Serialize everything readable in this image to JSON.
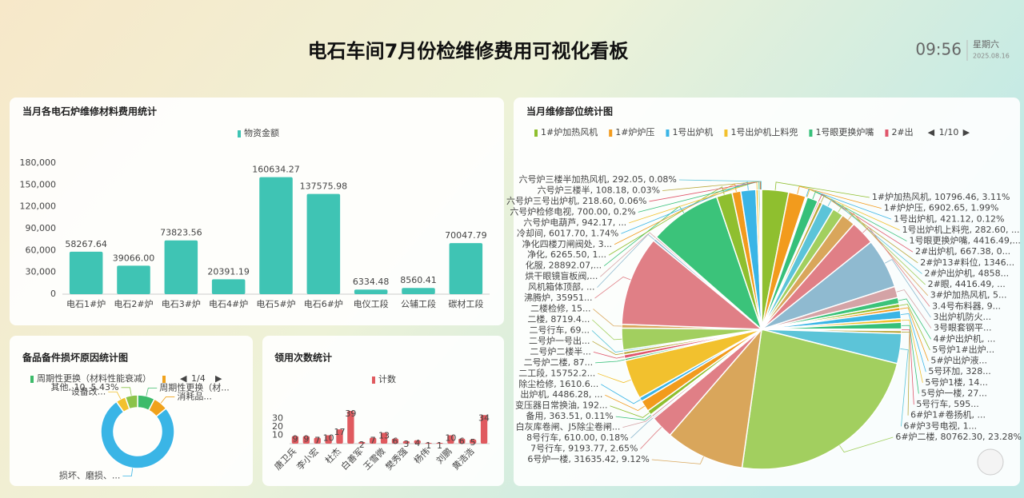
{
  "header": {
    "title": "电石车间7月份检维修费用可视化看板",
    "time": "09:56",
    "weekday": "星期六",
    "date": "2025.08.16"
  },
  "chart_data": [
    {
      "type": "bar",
      "title": "当月各电石炉维修材料费用统计",
      "categories": [
        "电石1#炉",
        "电石2#炉",
        "电石3#炉",
        "电石4#炉",
        "电石5#炉",
        "电石6#炉",
        "电仪工段",
        "公辅工段",
        "碳材工段"
      ],
      "series": [
        {
          "name": "物资金额",
          "color": "#3fc4b4",
          "values": [
            58267.64,
            39066,
            73823.56,
            20391.19,
            160634.27,
            137575.98,
            6334.48,
            8560.41,
            70047.79
          ],
          "value_labels": [
            "58267.64",
            "39066.00",
            "73823.56",
            "20391.19",
            "160634.27",
            "137575.98",
            "6334.48",
            "8560.41",
            "70047.79"
          ]
        }
      ],
      "ylim": [
        0,
        180000
      ],
      "yticks": [
        0,
        {
          "value": 30000,
          "label": "30,000"
        },
        {
          "value": 60000,
          "label": "60,000"
        },
        {
          "value": 90000,
          "label": "90,000"
        },
        {
          "value": 120000,
          "label": "120,000"
        },
        {
          "value": 150000,
          "label": "150,000"
        },
        {
          "value": 180000,
          "label": "180,000"
        }
      ],
      "grid": false
    },
    {
      "type": "pie",
      "title": "当月维修部位统计图",
      "donut": false,
      "legend": [
        "1#炉加热风机",
        "1#炉炉压",
        "1号出炉机",
        "1号出炉机上料兜",
        "1号眼更换炉嘴",
        "2#出"
      ],
      "legend_page": "1/10",
      "colors": [
        "#8fbf2f",
        "#f29b1d",
        "#3ab5e6",
        "#f2c12e",
        "#36c07a",
        "#e0566b",
        "#b9a83c",
        "#5cc4d8",
        "#a2cf5f",
        "#d9a65b",
        "#e07f86",
        "#8fbad0",
        "#d4a3a6",
        "#3bc37a"
      ],
      "values": [
        10796.46,
        6902.65,
        421.12,
        282.6,
        4416.49,
        667.38,
        1346.2,
        4858.3,
        4416.49,
        5600,
        9800,
        20000,
        4500,
        2500,
        1500,
        1200,
        3280,
        1400,
        2700,
        595,
        1200,
        12000,
        80762.3,
        31635.42,
        9193.77,
        610,
        900,
        363.51,
        1920,
        4486.28,
        1610.6,
        15752.2,
        870,
        1500,
        1200,
        690,
        8719.4,
        1500,
        35951,
        1000,
        800,
        28892.07,
        6265.5,
        3500,
        6017.7,
        942.17,
        700,
        218.6,
        108.18,
        292.05
      ],
      "value_labels": [
        "1#炉加热风机, 10796.46, 3.11%",
        "1#炉炉压, 6902.65, 1.99%",
        "1号出炉机, 421.12, 0.12%",
        "1号出炉机上料兜, 282.60, ...",
        "1号眼更换炉嘴, 4416.49,...",
        "2#出炉机, 667.38, 0...",
        "2#炉13#料位, 1346...",
        "2#炉出炉机, 4858...",
        "2#眼, 4416.49, ...",
        "3#炉加热风机, 5...",
        "3.4号布料器, 9...",
        "3出炉机防火...",
        "3号眼套钢平...",
        "4#炉出炉机, ...",
        "5号炉1#出炉...",
        "5#炉出炉液...",
        "5号环加, 328...",
        "5号炉1楼, 14...",
        "5号炉一楼, 27...",
        "5号行车, 595...",
        "6#炉1#卷扬机, ...",
        "6#炉3号电视, 1...",
        "6#炉二楼, 80762.30, 23.28%",
        "6号炉一楼, 31635.42, 9.12%",
        "7号行车, 9193.77, 2.65%",
        "8号行车, 610.00, 0.18%",
        "白灰库卷闸、J5除尘卷闸...",
        "备用, 363.51, 0.11%",
        "变压器日常换油, 192...",
        "出炉机, 4486.28, ...",
        "除尘检修, 1610.6...",
        "二工段, 15752.2...",
        "二号炉二楼, 87...",
        "二号炉二楼半...",
        "二号炉一号出...",
        "二号行车, 69...",
        "二楼, 8719.4...",
        "二楼检修, 15...",
        "沸腾炉, 35951...",
        "风机箱体顶部, ...",
        "烘干眼镜盲板阀,...",
        "化服, 28892.07,...",
        "净化, 6265.50, 1...",
        "净化四楼刀闸阀处, 3...",
        "冷却间, 6017.70, 1.74%",
        "六号炉电葫芦, 942.17, ...",
        "六号炉检修电视, 700.00, 0.2%",
        "六号炉三号出炉机, 218.60, 0.06%",
        "六号炉三楼半, 108.18, 0.03%",
        "六号炉三楼半加热风机, 292.05, 0.08%"
      ]
    },
    {
      "type": "pie",
      "title": "备品备件损坏原因统计图",
      "donut": true,
      "legend": [
        "周期性更换（材料性能衰减）"
      ],
      "legend_page": "1/4",
      "colors": [
        "#3dbb6a",
        "#f0a21c",
        "#3ab5e6",
        "#f2c12e",
        "#8bc34a"
      ],
      "values": [
        14,
        12,
        140,
        8,
        10
      ],
      "value_labels": [
        "周期性更换（材...",
        "消耗品...",
        "损坏、磨损、...",
        "设备改...",
        "其他, 10, 5.43%"
      ]
    },
    {
      "type": "bar",
      "title": "领用次数统计",
      "categories": [
        "唐卫兵",
        null,
        "李小宏",
        null,
        "杜杰",
        null,
        "白善军",
        null,
        "王雪微",
        null,
        "樊秀强",
        null,
        "杨伟",
        null,
        "刘鹏",
        null,
        "黄浩浩",
        null
      ],
      "series": [
        {
          "name": "计数",
          "color": "#e05a5f",
          "values": [
            9,
            9,
            7,
            10,
            17,
            39,
            2,
            7,
            13,
            6,
            3,
            4,
            1,
            1,
            10,
            6,
            5,
            34
          ]
        }
      ],
      "ylim": [
        0,
        40
      ],
      "yticks": [
        10,
        20,
        30
      ],
      "grid": false
    }
  ]
}
